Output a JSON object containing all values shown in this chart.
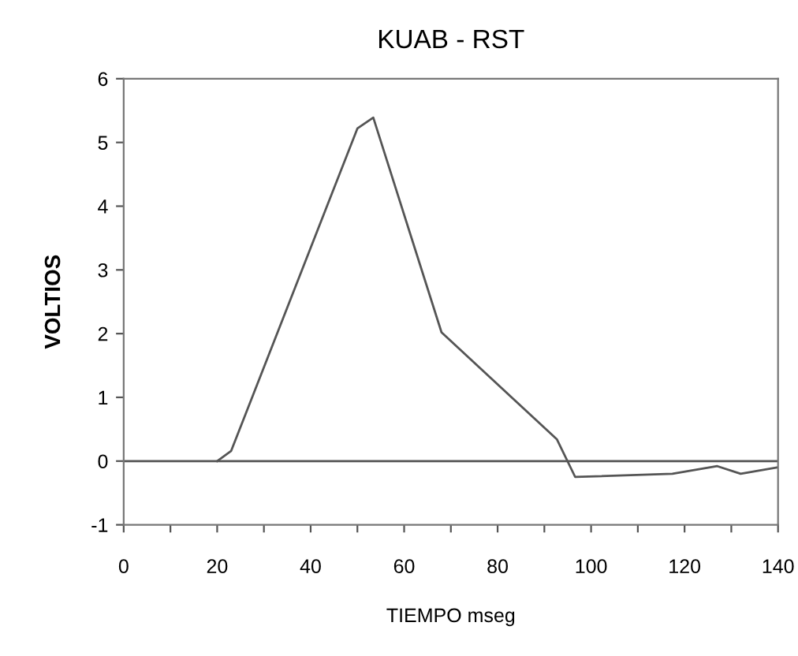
{
  "chart_data": {
    "type": "line",
    "title": "KUAB - RST",
    "xlabel": "TIEMPO mseg",
    "ylabel": "VOLTIOS",
    "series": [
      {
        "color": "#555555",
        "x": [
          20,
          23,
          50,
          53.4,
          68,
          92.7,
          96.6,
          117.4,
          127,
          132,
          139.8
        ],
        "values": [
          0,
          0.16,
          5.22,
          5.39,
          2.02,
          0.34,
          -0.25,
          -0.2,
          -0.08,
          -0.2,
          -0.1
        ]
      }
    ],
    "xlim": [
      0,
      140
    ],
    "ylim": [
      -1,
      6
    ],
    "xticks": [
      0,
      {
        "value": 10,
        "label": null
      },
      20,
      {
        "value": 30,
        "label": null
      },
      40,
      {
        "value": 50,
        "label": null
      },
      60,
      {
        "value": 70,
        "label": null
      },
      80,
      {
        "value": 90,
        "label": null
      },
      100,
      {
        "value": 110,
        "label": null
      },
      120,
      {
        "value": 130,
        "label": null
      },
      140
    ],
    "yticks": [
      -1,
      0,
      1,
      2,
      3,
      4,
      5,
      6
    ],
    "ref_lines": [
      {
        "axis": "y",
        "value": 0,
        "color": "#555555"
      }
    ],
    "grid": false,
    "legend": false,
    "marker": "none",
    "line_style": "solid"
  }
}
